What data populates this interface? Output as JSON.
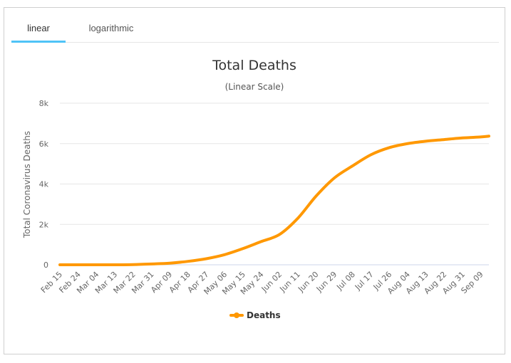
{
  "tabs": [
    {
      "label": "linear",
      "active": true
    },
    {
      "label": "logarithmic",
      "active": false
    }
  ],
  "colors": {
    "series": "#FF9800",
    "tab_underline": "#4fc3f7",
    "grid": "#e6e6e6"
  },
  "chart_data": {
    "type": "line",
    "title": "Total Deaths",
    "subtitle": "(Linear Scale)",
    "xlabel": "",
    "ylabel": "Total Coronavirus Deaths",
    "ylim": [
      0,
      8000
    ],
    "yticks": [
      0,
      2000,
      4000,
      6000,
      8000
    ],
    "ytick_labels": [
      "0",
      "2k",
      "4k",
      "6k",
      "8k"
    ],
    "xtick_labels": [
      "Feb 15",
      "Feb 24",
      "Mar 04",
      "Mar 13",
      "Mar 22",
      "Mar 31",
      "Apr 09",
      "Apr 18",
      "Apr 27",
      "May 06",
      "May 15",
      "May 24",
      "Jun 02",
      "Jun 11",
      "Jun 20",
      "Jun 29",
      "Jul 08",
      "Jul 17",
      "Jul 26",
      "Aug 04",
      "Aug 13",
      "Aug 22",
      "Aug 31",
      "Sep 09"
    ],
    "grid": true,
    "legend": "bottom-center",
    "series": [
      {
        "name": "Deaths",
        "x": [
          "Feb 15",
          "Feb 24",
          "Mar 04",
          "Mar 13",
          "Mar 22",
          "Mar 31",
          "Apr 09",
          "Apr 18",
          "Apr 27",
          "May 06",
          "May 15",
          "May 24",
          "Jun 02",
          "Jun 11",
          "Jun 20",
          "Jun 29",
          "Jul 08",
          "Jul 17",
          "Jul 26",
          "Aug 04",
          "Aug 13",
          "Aug 22",
          "Aug 31",
          "Sep 09",
          "Sep 13"
        ],
        "values": [
          0,
          0,
          0,
          0,
          10,
          40,
          80,
          170,
          300,
          500,
          800,
          1150,
          1500,
          2300,
          3400,
          4300,
          4900,
          5450,
          5800,
          6000,
          6120,
          6200,
          6280,
          6330,
          6370
        ]
      }
    ]
  }
}
